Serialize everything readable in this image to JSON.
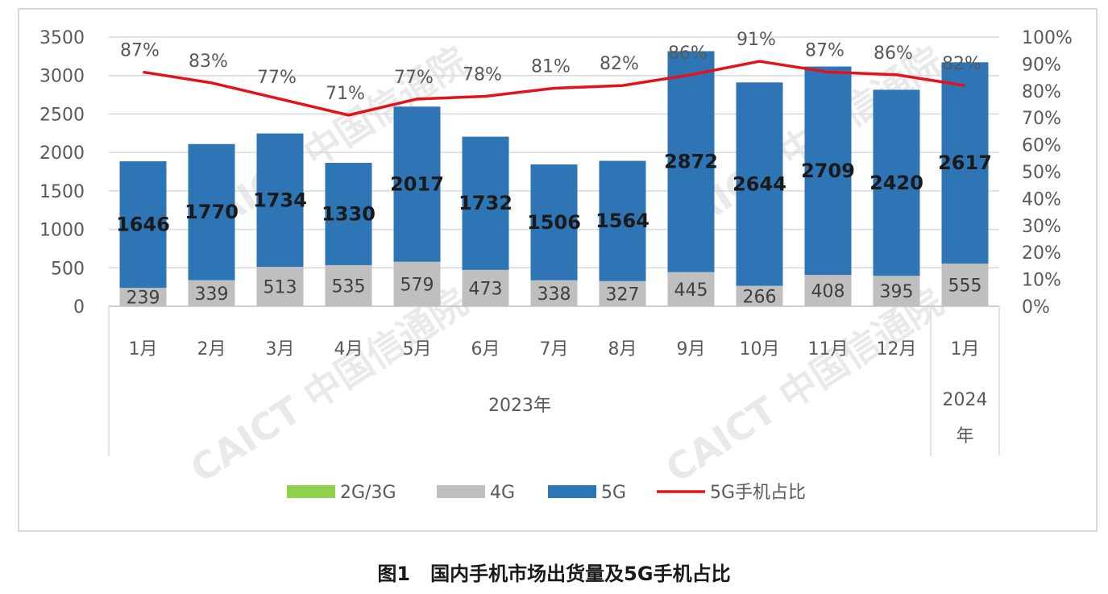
{
  "caption": "图1   国内手机市场出货量及5G手机占比",
  "watermark": "CAICT 中国信通院",
  "chart_data": {
    "type": "bar",
    "stacked": true,
    "categories": [
      "1月",
      "2月",
      "3月",
      "4月",
      "5月",
      "6月",
      "7月",
      "8月",
      "9月",
      "10月",
      "11月",
      "12月",
      "1月"
    ],
    "year_groups": [
      {
        "label": "2023年",
        "count": 12
      },
      {
        "label": "2024年",
        "count": 1
      }
    ],
    "series": [
      {
        "name": "2G/3G",
        "type": "bar",
        "color": "#92d050",
        "values": [
          0,
          0,
          0,
          0,
          0,
          0,
          0,
          0,
          0,
          0,
          0,
          0,
          0
        ]
      },
      {
        "name": "4G",
        "type": "bar",
        "color": "#bfbfbf",
        "values": [
          239,
          339,
          513,
          535,
          579,
          473,
          338,
          327,
          445,
          266,
          408,
          395,
          555
        ]
      },
      {
        "name": "5G",
        "type": "bar",
        "color": "#2e75b6",
        "values": [
          1646,
          1770,
          1734,
          1330,
          2017,
          1732,
          1506,
          1564,
          2872,
          2644,
          2709,
          2420,
          2617
        ]
      },
      {
        "name": "5G手机占比",
        "type": "line",
        "axis": "right",
        "color": "#e3121b",
        "values": [
          87,
          83,
          77,
          71,
          77,
          78,
          81,
          82,
          86,
          91,
          87,
          86,
          82
        ],
        "labels": [
          "87%",
          "83%",
          "77%",
          "71%",
          "77%",
          "78%",
          "81%",
          "82%",
          "86%",
          "91%",
          "87%",
          "86%",
          "82%"
        ]
      }
    ],
    "y_left": {
      "ylim": [
        0,
        3500
      ],
      "ticks": [
        "0",
        "500",
        "1000",
        "1500",
        "2000",
        "2500",
        "3000",
        "3500"
      ]
    },
    "y_right": {
      "ylim": [
        0,
        100
      ],
      "ticks": [
        "0%",
        "10%",
        "20%",
        "30%",
        "40%",
        "50%",
        "60%",
        "70%",
        "80%",
        "90%",
        "100%"
      ]
    },
    "grid": true,
    "legend_position": "bottom"
  }
}
